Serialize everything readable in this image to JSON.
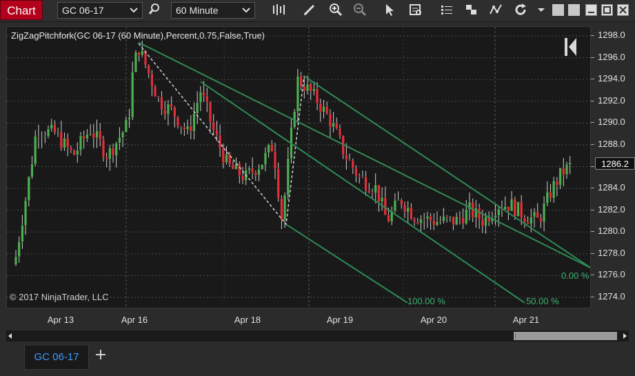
{
  "toolbar": {
    "chart_label": "Chart",
    "instrument": "GC 06-17",
    "interval": "60 Minute",
    "icons": [
      "bars-icon",
      "pencil-icon",
      "zoom-in-icon",
      "zoom-out-icon",
      "pointer-icon",
      "data-box-icon",
      "properties-icon",
      "layers-icon",
      "strategy-icon",
      "refresh-icon",
      "dropdown-icon"
    ]
  },
  "chart": {
    "indicator_label": "ZigZagPitchfork(GC 06-17 (60 Minute),Percent,0.75,False,True)",
    "copyright": "© 2017 NinjaTrader, LLC",
    "fib_labels": [
      "0.00 %",
      "100.00 %",
      "50.00 %"
    ],
    "price_ticks": [
      "1298.0",
      "1296.0",
      "1294.0",
      "1292.0",
      "1290.0",
      "1288.0",
      "1286.0",
      "1284.0",
      "1282.0",
      "1280.0",
      "1278.0",
      "1276.0",
      "1274.0"
    ],
    "current_price": "1286.2",
    "date_labels": [
      "Apr 13",
      "Apr 16",
      "Apr 18",
      "Apr 19",
      "Apr 20",
      "Apr 21"
    ],
    "colors": {
      "up": "#4caf50",
      "down": "#e0303a",
      "pitchfork": "#2e8b57",
      "background": "#191919"
    }
  },
  "tabs": {
    "active": "GC 06-17",
    "add_label": "+"
  }
}
